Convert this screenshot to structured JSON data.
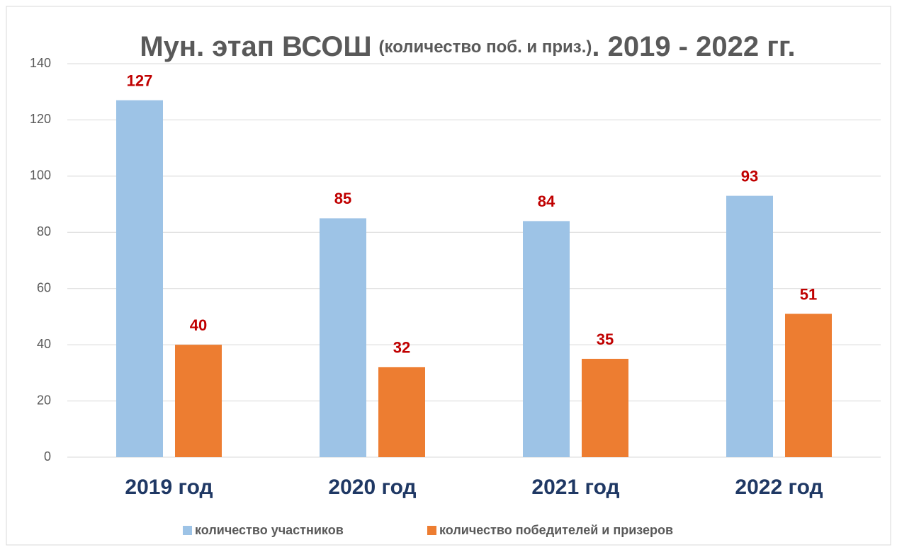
{
  "chart_data": {
    "type": "bar",
    "title": [
      "Мун. этап ВСОШ",
      "(количество поб. и приз.)",
      ". 2019 - 2022 гг."
    ],
    "categories": [
      "2019 год",
      "2020 год",
      "2021 год",
      "2022 год"
    ],
    "series": [
      {
        "name": "количество участников",
        "color": "#9dc3e6",
        "values": [
          127,
          85,
          84,
          93
        ]
      },
      {
        "name": "количество победителей и призеров",
        "color": "#ed7d31",
        "values": [
          40,
          32,
          35,
          51
        ]
      }
    ],
    "ylim": [
      0,
      140
    ],
    "yticks": [
      0,
      20,
      40,
      60,
      80,
      100,
      120,
      140
    ],
    "grid": true,
    "legend": "bottom",
    "value_label_color": "#c00000",
    "category_color": "#1f3864"
  }
}
